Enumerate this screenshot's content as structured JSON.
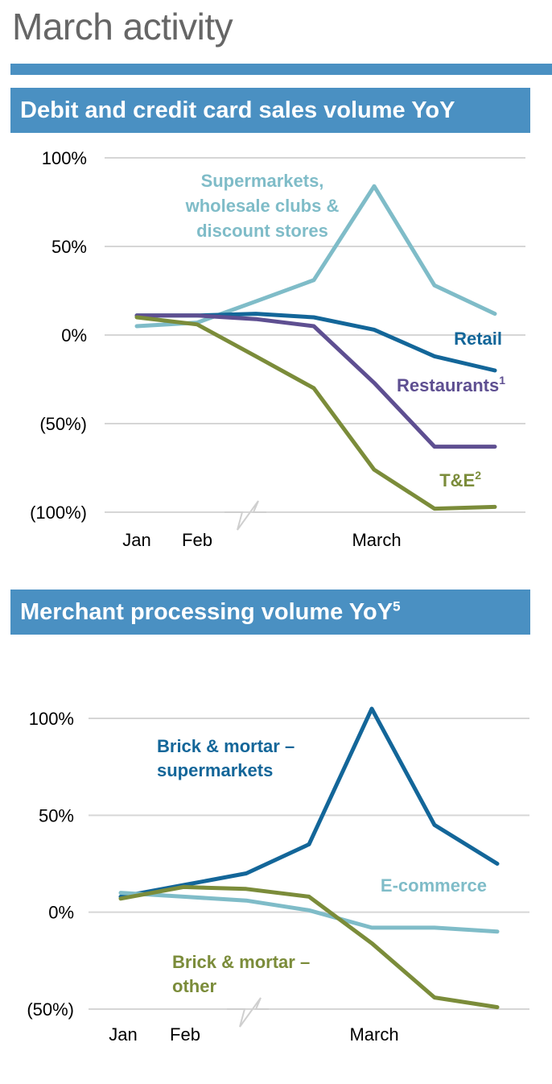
{
  "page": {
    "title": "March activity"
  },
  "chart_data": [
    {
      "type": "line",
      "title": "Debit and credit card sales volume YoY",
      "title_superscript": "",
      "x_labels": [
        "Jan",
        "Feb",
        "March"
      ],
      "y_ticks": [
        {
          "value": 100,
          "label": "100%"
        },
        {
          "value": 50,
          "label": "50%"
        },
        {
          "value": 0,
          "label": "0%"
        },
        {
          "value": -50,
          "label": "(50%)"
        },
        {
          "value": -100,
          "label": "(100%)"
        }
      ],
      "ylim": [
        -100,
        100
      ],
      "grid": true,
      "axis_break": true,
      "series": [
        {
          "name": "Supermarkets, wholesale clubs & discount stores",
          "label_lines": [
            "Supermarkets,",
            "wholesale clubs &",
            "discount stores"
          ],
          "label_sup": "",
          "color": "#7fbcc8",
          "values": [
            5,
            7,
            19,
            31,
            84,
            28,
            12
          ]
        },
        {
          "name": "Retail",
          "label_lines": [
            "Retail"
          ],
          "label_sup": "",
          "color": "#136699",
          "values": [
            11,
            11,
            12,
            10,
            3,
            -12,
            -20
          ]
        },
        {
          "name": "Restaurants",
          "label_lines": [
            "Restaurants"
          ],
          "label_sup": "1",
          "color": "#5e4f91",
          "values": [
            11,
            11,
            9,
            5,
            -27,
            -63,
            -63
          ]
        },
        {
          "name": "T&E",
          "label_lines": [
            "T&E"
          ],
          "label_sup": "2",
          "color": "#7b8c3a",
          "values": [
            10,
            6,
            -12,
            -30,
            -76,
            -98,
            -97
          ]
        }
      ]
    },
    {
      "type": "line",
      "title": "Merchant processing volume YoY",
      "title_superscript": "5",
      "x_labels": [
        "Jan",
        "Feb",
        "March"
      ],
      "y_ticks": [
        {
          "value": 100,
          "label": "100%"
        },
        {
          "value": 50,
          "label": "50%"
        },
        {
          "value": 0,
          "label": "0%"
        },
        {
          "value": -50,
          "label": "(50%)"
        }
      ],
      "ylim": [
        -50,
        100
      ],
      "grid": true,
      "axis_break": true,
      "series": [
        {
          "name": "Brick & mortar – supermarkets",
          "label_lines": [
            "Brick & mortar –",
            "supermarkets"
          ],
          "label_sup": "",
          "color": "#136699",
          "values": [
            8,
            14,
            20,
            35,
            105,
            45,
            25
          ]
        },
        {
          "name": "E-commerce",
          "label_lines": [
            "E-commerce"
          ],
          "label_sup": "",
          "color": "#7fbcc8",
          "values": [
            10,
            8,
            6,
            1,
            -8,
            -8,
            -10
          ]
        },
        {
          "name": "Brick & mortar – other",
          "label_lines": [
            "Brick & mortar –",
            "other"
          ],
          "label_sup": "",
          "color": "#7b8c3a",
          "values": [
            7,
            13,
            12,
            8,
            -16,
            -44,
            -49
          ]
        }
      ]
    }
  ]
}
